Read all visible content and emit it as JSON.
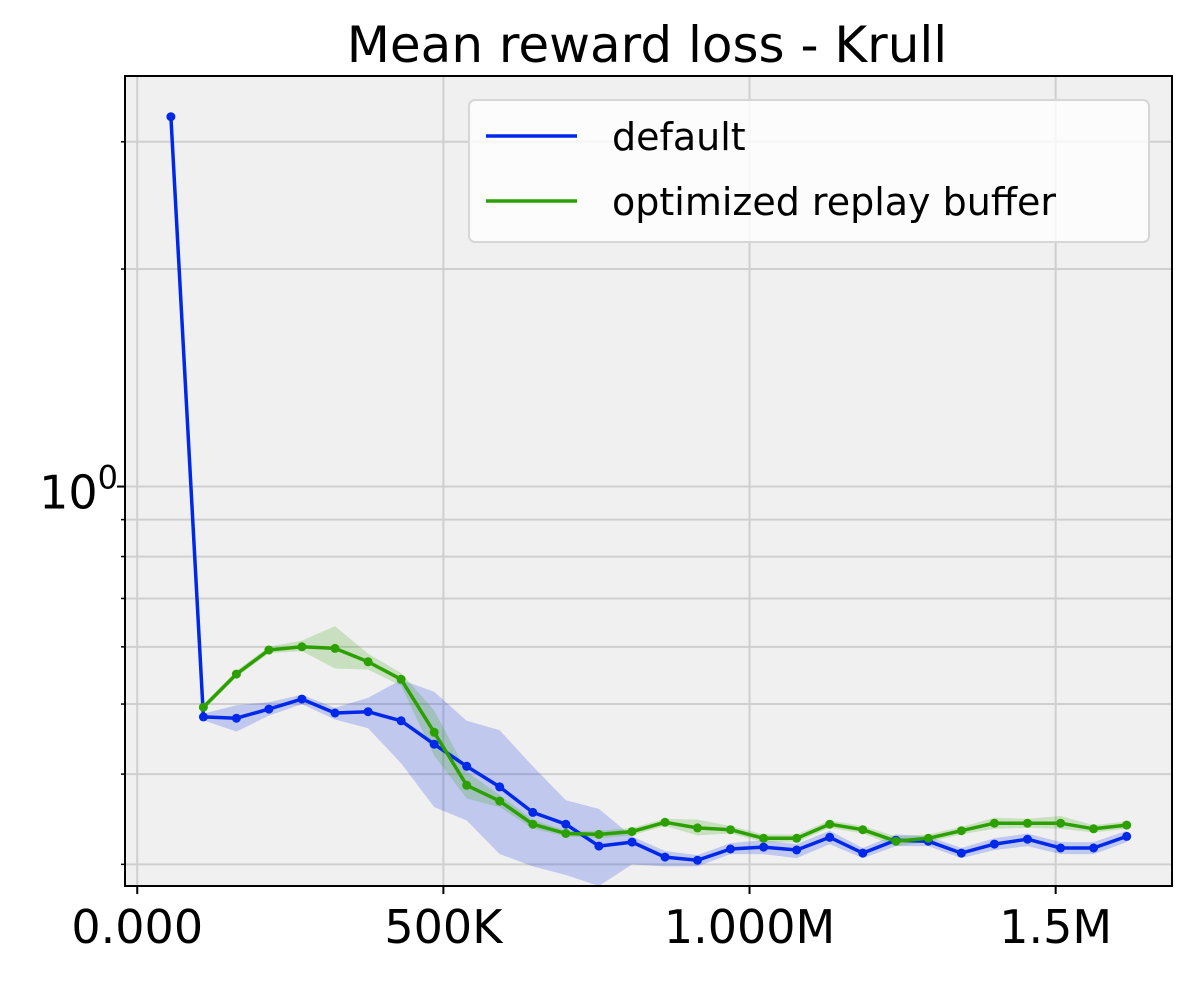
{
  "chart_data": {
    "type": "line",
    "title": "Mean reward loss - Krull",
    "xlabel": "",
    "ylabel": "",
    "y_scale": "log",
    "x_ticks": [
      {
        "value": 0,
        "label": "0.000"
      },
      {
        "value": 500000,
        "label": "500K"
      },
      {
        "value": 1000000,
        "label": "1.000M"
      },
      {
        "value": 1500000,
        "label": "1.5M"
      }
    ],
    "y_major_tick": {
      "value": 1.0,
      "base": "10",
      "exp": "0"
    },
    "y_minor_ticks": [
      0.3,
      0.4,
      0.5,
      0.6,
      0.7,
      0.8,
      0.9,
      2,
      3
    ],
    "xlim": [
      -20000,
      1690000
    ],
    "ylim": [
      0.28,
      3.7
    ],
    "grid": true,
    "legend_position": "top-right",
    "x": [
      55000,
      108000,
      162000,
      215000,
      269000,
      323000,
      377000,
      431000,
      485000,
      538000,
      592000,
      646000,
      700000,
      754000,
      808000,
      862000,
      915000,
      969000,
      1023000,
      1077000,
      1131000,
      1185000,
      1239000,
      1292000,
      1346000,
      1400000,
      1454000,
      1508000,
      1562000,
      1616000
    ],
    "series": [
      {
        "name": "default",
        "color": "#0028e8",
        "values": [
          3.25,
          0.48,
          0.478,
          0.492,
          0.508,
          0.486,
          0.488,
          0.474,
          0.44,
          0.41,
          0.384,
          0.354,
          0.341,
          0.318,
          0.322,
          0.307,
          0.304,
          0.315,
          0.317,
          0.314,
          0.327,
          0.311,
          0.324,
          0.323,
          0.311,
          0.32,
          0.325,
          0.316,
          0.316,
          0.328
        ],
        "band_low": [
          3.25,
          0.475,
          0.458,
          0.482,
          0.5,
          0.476,
          0.463,
          0.414,
          0.36,
          0.345,
          0.31,
          0.298,
          0.29,
          0.28,
          0.3,
          0.298,
          0.298,
          0.31,
          0.31,
          0.306,
          0.32,
          0.306,
          0.318,
          0.318,
          0.306,
          0.314,
          0.318,
          0.31,
          0.31,
          0.322
        ],
        "band_high": [
          3.25,
          0.485,
          0.498,
          0.503,
          0.515,
          0.494,
          0.51,
          0.54,
          0.52,
          0.474,
          0.46,
          0.41,
          0.368,
          0.358,
          0.328,
          0.313,
          0.309,
          0.321,
          0.324,
          0.32,
          0.334,
          0.316,
          0.33,
          0.328,
          0.316,
          0.326,
          0.331,
          0.322,
          0.322,
          0.334
        ]
      },
      {
        "name": "optimized replay buffer",
        "color": "#2ca000",
        "values": [
          null,
          0.495,
          0.55,
          0.594,
          0.6,
          0.597,
          0.572,
          0.541,
          0.457,
          0.386,
          0.367,
          0.341,
          0.331,
          0.33,
          0.333,
          0.343,
          0.337,
          0.335,
          0.326,
          0.326,
          0.341,
          0.335,
          0.323,
          0.326,
          0.334,
          0.342,
          0.342,
          0.342,
          0.336,
          0.34
        ],
        "band_low": [
          null,
          0.49,
          0.545,
          0.588,
          0.592,
          0.56,
          0.558,
          0.53,
          0.424,
          0.37,
          0.36,
          0.336,
          0.328,
          0.326,
          0.329,
          0.339,
          0.329,
          0.331,
          0.322,
          0.322,
          0.337,
          0.331,
          0.318,
          0.322,
          0.33,
          0.336,
          0.337,
          0.336,
          0.332,
          0.336
        ],
        "band_high": [
          null,
          0.5,
          0.556,
          0.6,
          0.612,
          0.641,
          0.587,
          0.552,
          0.49,
          0.403,
          0.374,
          0.346,
          0.334,
          0.334,
          0.337,
          0.347,
          0.346,
          0.339,
          0.33,
          0.33,
          0.345,
          0.339,
          0.328,
          0.33,
          0.338,
          0.348,
          0.347,
          0.35,
          0.34,
          0.344
        ]
      }
    ]
  }
}
